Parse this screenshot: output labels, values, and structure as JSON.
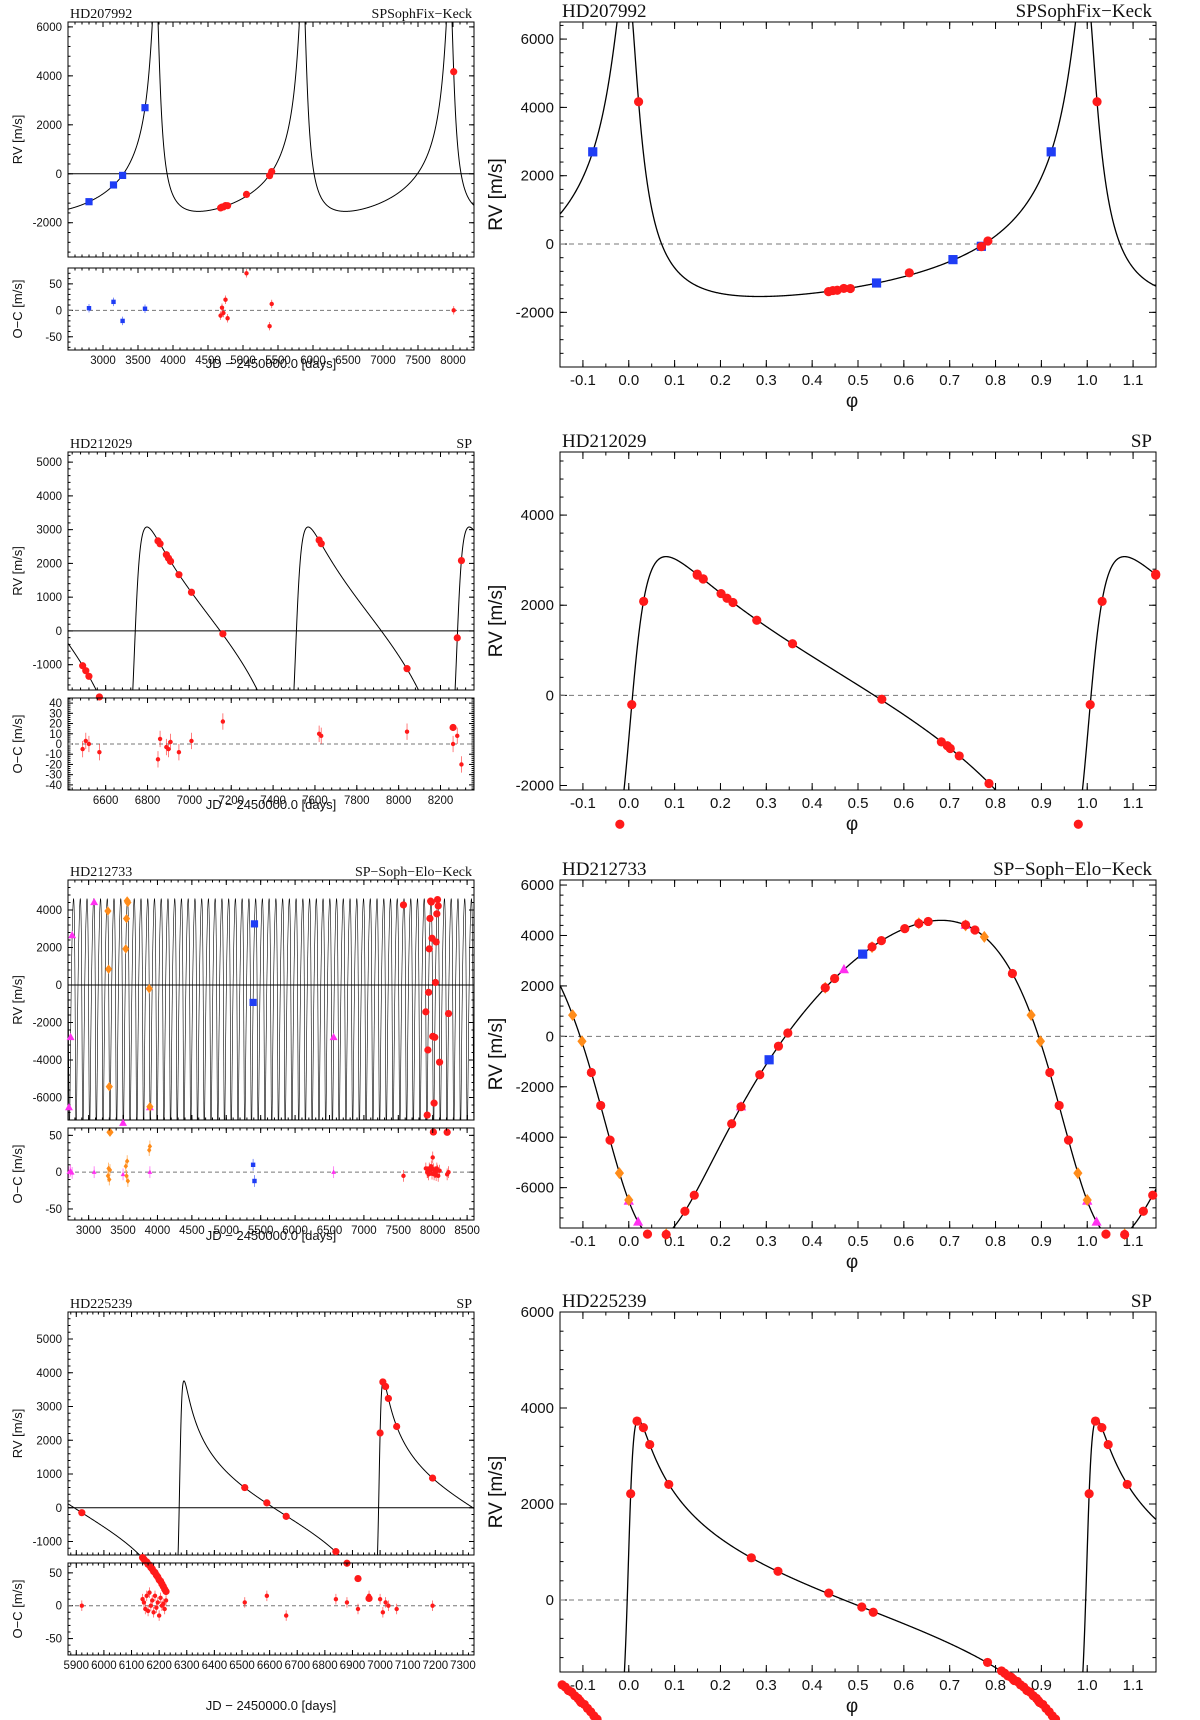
{
  "figure": {
    "caption": ""
  },
  "colors": {
    "SP": "#ff1a1a",
    "Keck": "#1f3df5",
    "Sophie": "#ff8c1a",
    "Elodie": "#ff2ff0",
    "SophieFix": "#3b1fd0",
    "model": "#000000"
  },
  "chart_data": [
    {
      "id": "hd207992",
      "star": "HD207992",
      "instruments": "SPSophFix−Keck",
      "P": 2100,
      "T0": 3765,
      "e": 0.72,
      "omega_deg": 20,
      "K": 4750,
      "gamma": 0,
      "time_panel": {
        "type": "scatter",
        "xlim": [
          2500,
          8300
        ],
        "ylim": [
          -3400,
          6200
        ],
        "xticks": [
          3000,
          3500,
          4000,
          4500,
          5000,
          5500,
          6000,
          6500,
          7000,
          7500,
          8000
        ],
        "yticks": [
          -2000,
          0,
          2000,
          4000,
          6000
        ],
        "xlabel": "JD − 2450000.0 [days]",
        "ylabel": "RV [m/s]"
      },
      "resid_panel": {
        "ylim": [
          -75,
          80
        ],
        "yticks": [
          -50,
          0,
          50
        ],
        "ylabel": "O−C [m/s]"
      },
      "phase_panel": {
        "xlim": [
          -0.15,
          1.15
        ],
        "ylim": [
          -3600,
          6500
        ],
        "xticks": [
          -0.1,
          0.0,
          0.1,
          0.2,
          0.3,
          0.4,
          0.5,
          0.6,
          0.7,
          0.8,
          0.9,
          1.0,
          1.1
        ],
        "yticks": [
          -2000,
          0,
          2000,
          4000,
          6000
        ],
        "xlabel": "φ",
        "ylabel": "RV [m/s]"
      },
      "series": [
        {
          "name": "Keck",
          "color": "#1f3df5",
          "marker": "square",
          "t": [
            2800,
            3150,
            3280,
            3600
          ],
          "res": [
            4,
            16,
            -20,
            3
          ]
        },
        {
          "name": "SP",
          "color": "#ff1a1a",
          "marker": "circle",
          "t": [
            4680,
            4700,
            4720,
            4750,
            4780,
            5050,
            5380,
            5410,
            8010
          ],
          "res": [
            -10,
            5,
            -5,
            20,
            -15,
            70,
            -30,
            12,
            0
          ]
        },
        {
          "name": "SophieFix",
          "color": "#3b1fd0",
          "marker": "circle",
          "t": [],
          "res": []
        }
      ]
    },
    {
      "id": "hd212029",
      "star": "HD212029",
      "instruments": "SP",
      "P": 770,
      "T0": 6735,
      "e": 0.62,
      "omega_deg": 260,
      "K": 3450,
      "gamma": 0,
      "time_panel": {
        "type": "scatter",
        "xlim": [
          6420,
          8360
        ],
        "ylim": [
          -1750,
          5300
        ],
        "xticks": [
          6600,
          6800,
          7000,
          7200,
          7400,
          7600,
          7800,
          8000,
          8200
        ],
        "yticks": [
          -1000,
          0,
          1000,
          2000,
          3000,
          4000,
          5000
        ],
        "xlabel": "JD − 2450000.0 [days]",
        "ylabel": "RV [m/s]"
      },
      "resid_panel": {
        "ylim": [
          -45,
          45
        ],
        "yticks": [
          -40,
          -30,
          -20,
          -10,
          0,
          10,
          20,
          30,
          40
        ],
        "ylabel": "O−C [m/s]"
      },
      "phase_panel": {
        "xlim": [
          -0.15,
          1.15
        ],
        "ylim": [
          -2100,
          5400
        ],
        "xticks": [
          -0.1,
          0.0,
          0.1,
          0.2,
          0.3,
          0.4,
          0.5,
          0.6,
          0.7,
          0.8,
          0.9,
          1.0,
          1.1
        ],
        "yticks": [
          -2000,
          0,
          2000,
          4000
        ],
        "xlabel": "φ",
        "ylabel": "RV [m/s]"
      },
      "series": [
        {
          "name": "SP",
          "color": "#ff1a1a",
          "marker": "circle",
          "t": [
            6490,
            6505,
            6520,
            6570,
            6850,
            6860,
            6890,
            6900,
            6910,
            6950,
            7010,
            7160,
            7620,
            7630,
            8040,
            8260,
            8280,
            8300
          ],
          "res": [
            -5,
            3,
            0,
            -8,
            -15,
            5,
            -3,
            -5,
            2,
            -8,
            3,
            22,
            10,
            8,
            12,
            0,
            8,
            -20
          ]
        }
      ]
    },
    {
      "id": "hd212733",
      "star": "HD212733",
      "instruments": "SP−Soph−Elo−Keck",
      "P": 98,
      "T0": 2714,
      "e": 0.29,
      "omega_deg": 140,
      "K": 6300,
      "gamma": -300,
      "time_panel": {
        "type": "scatter",
        "xlim": [
          2700,
          8600
        ],
        "ylim": [
          -7200,
          5600
        ],
        "xticks": [
          3000,
          3500,
          4000,
          4500,
          5000,
          5500,
          6000,
          6500,
          7000,
          7500,
          8000,
          8500
        ],
        "yticks": [
          -6000,
          -4000,
          -2000,
          0,
          2000,
          4000
        ],
        "xlabel": "JD − 2450000.0 [days]",
        "ylabel": "RV [m/s]"
      },
      "resid_panel": {
        "ylim": [
          -65,
          60
        ],
        "yticks": [
          -50,
          0,
          50
        ],
        "ylabel": "O−C [m/s]"
      },
      "phase_panel": {
        "xlim": [
          -0.15,
          1.15
        ],
        "ylim": [
          -7600,
          6200
        ],
        "xticks": [
          -0.1,
          0.0,
          0.1,
          0.2,
          0.3,
          0.4,
          0.5,
          0.6,
          0.7,
          0.8,
          0.9,
          1.0,
          1.1
        ],
        "yticks": [
          -6000,
          -4000,
          -2000,
          0,
          2000,
          4000,
          6000
        ],
        "xlabel": "φ",
        "ylabel": "RV [m/s]"
      },
      "series": [
        {
          "name": "Elodie",
          "color": "#ff2ff0",
          "marker": "triangle",
          "t": [
            2714,
            2738,
            3080,
            3500,
            3890,
            6560,
            2760
          ],
          "res": [
            0,
            2,
            0,
            -3,
            0,
            0,
            -1
          ]
        },
        {
          "name": "Sophie",
          "color": "#ff8c1a",
          "marker": "diamond",
          "t": [
            3280,
            3290,
            3300,
            3310,
            3540,
            3550,
            3560,
            3570,
            3880,
            3890
          ],
          "res": [
            -5,
            5,
            -10,
            3,
            8,
            -5,
            15,
            -12,
            30,
            35
          ]
        },
        {
          "name": "Keck",
          "color": "#1f3df5",
          "marker": "square",
          "t": [
            5390,
            5410
          ],
          "res": [
            10,
            -12
          ]
        },
        {
          "name": "SP",
          "color": "#ff1a1a",
          "marker": "circle",
          "t": [
            7575,
            7900,
            7920,
            7940,
            7960,
            7980,
            8000,
            8020,
            8040,
            8060,
            8080,
            8100,
            8210,
            8230,
            7930,
            7950,
            7970,
            7990,
            8010,
            8030,
            8050,
            8070
          ],
          "res": [
            -5,
            5,
            0,
            -3,
            3,
            8,
            20,
            -3,
            0,
            5,
            -5,
            2,
            -3,
            0,
            0,
            5,
            3,
            -2,
            4,
            0,
            -4,
            2
          ]
        }
      ]
    },
    {
      "id": "hd225239",
      "star": "HD225239",
      "instruments": "SP",
      "P": 722,
      "T0": 6275,
      "e": 0.8,
      "omega_deg": 280,
      "K": 3300,
      "gamma": 0,
      "time_panel": {
        "type": "scatter",
        "xlim": [
          5870,
          7340
        ],
        "ylim": [
          -1400,
          5800
        ],
        "xticks": [
          5900,
          6000,
          6100,
          6200,
          6300,
          6400,
          6500,
          6600,
          6700,
          6800,
          6900,
          7000,
          7100,
          7200,
          7300
        ],
        "yticks": [
          -1000,
          0,
          1000,
          2000,
          3000,
          4000,
          5000
        ],
        "xlabel": "JD − 2450000.0 [days]",
        "ylabel": "RV [m/s]"
      },
      "resid_panel": {
        "ylim": [
          -75,
          65
        ],
        "yticks": [
          -50,
          0,
          50
        ],
        "ylabel": "O−C [m/s]"
      },
      "phase_panel": {
        "xlim": [
          -0.15,
          1.15
        ],
        "ylim": [
          -1500,
          6000
        ],
        "xticks": [
          -0.1,
          0.0,
          0.1,
          0.2,
          0.3,
          0.4,
          0.5,
          0.6,
          0.7,
          0.8,
          0.9,
          1.0,
          1.1
        ],
        "yticks": [
          0,
          2000,
          4000,
          6000
        ],
        "xlabel": "φ",
        "ylabel": "RV [m/s]"
      },
      "series": [
        {
          "name": "SP",
          "color": "#ff1a1a",
          "marker": "circle",
          "t": [
            5920,
            6140,
            6145,
            6150,
            6155,
            6160,
            6165,
            6170,
            6175,
            6180,
            6185,
            6190,
            6195,
            6200,
            6205,
            6210,
            6215,
            6220,
            6225,
            6510,
            6590,
            6660,
            6840,
            6880,
            6920,
            6960,
            7000,
            7010,
            7020,
            7030,
            7060,
            7190
          ],
          "res": [
            0,
            10,
            5,
            -5,
            15,
            -8,
            20,
            0,
            8,
            -10,
            15,
            -3,
            5,
            -15,
            12,
            0,
            3,
            -5,
            8,
            5,
            15,
            -15,
            10,
            5,
            -5,
            15,
            10,
            -10,
            5,
            0,
            -5,
            0
          ]
        }
      ]
    }
  ]
}
